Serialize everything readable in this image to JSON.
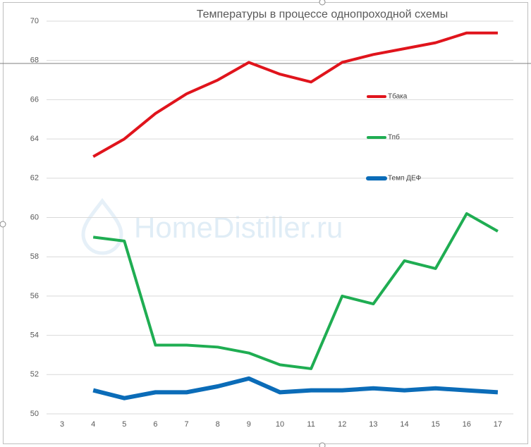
{
  "chart_data": {
    "type": "line",
    "title": "Температуры в процессе однопроходной  схемы",
    "watermark": "HomeDistiller.ru",
    "x": [
      4,
      5,
      6,
      7,
      8,
      9,
      10,
      11,
      12,
      13,
      14,
      15,
      16,
      17
    ],
    "xlim": [
      2.5,
      17.5
    ],
    "xticks": [
      3,
      4,
      5,
      6,
      7,
      8,
      9,
      10,
      11,
      12,
      13,
      14,
      15,
      16,
      17
    ],
    "ylim": [
      50,
      70
    ],
    "yticks": [
      50,
      52,
      54,
      56,
      58,
      60,
      62,
      64,
      66,
      68,
      70
    ],
    "grid": true,
    "legend": "right",
    "series": [
      {
        "name": "Тбака",
        "color": "#e0141c",
        "width": 4,
        "values": [
          63.1,
          64.0,
          65.3,
          66.3,
          67.0,
          67.9,
          67.3,
          66.9,
          67.9,
          68.3,
          68.6,
          68.9,
          69.4,
          69.4
        ]
      },
      {
        "name": "Тпб",
        "color": "#1fad52",
        "width": 4,
        "values": [
          59.0,
          58.8,
          53.5,
          53.5,
          53.4,
          53.1,
          52.5,
          52.3,
          56.0,
          55.6,
          57.8,
          57.4,
          60.2,
          59.3
        ]
      },
      {
        "name": "Темп ДЕФ",
        "color": "#0b6cb8",
        "width": 6,
        "values": [
          51.2,
          50.8,
          51.1,
          51.1,
          51.4,
          51.8,
          51.1,
          51.2,
          51.2,
          51.3,
          51.2,
          51.3,
          51.2,
          51.1
        ]
      }
    ]
  }
}
